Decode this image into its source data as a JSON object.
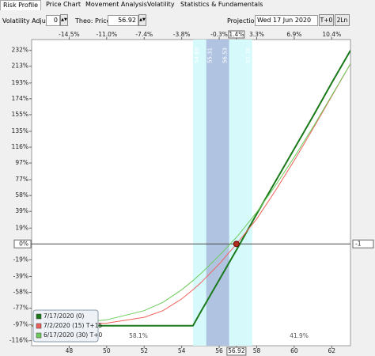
{
  "tabs": [
    "Risk Profile",
    "Price Chart",
    "Movement Analysis",
    "Volatility",
    "Statistics & Fundamentals"
  ],
  "toolbar": {
    "volatility_label": "Volatility Adjust",
    "volatility_value": "0",
    "theo_label": "Theo: Price",
    "theo_value": "56.92",
    "projection_label": "Projection",
    "projection_value": "Wed 17 Jun 2020",
    "buttons": [
      "T+0",
      "2Ln"
    ]
  },
  "chart_data": {
    "type": "line",
    "x": [
      46,
      48,
      50,
      52,
      53,
      54,
      54.6,
      55,
      56,
      57,
      58,
      59,
      60,
      61,
      62,
      63
    ],
    "series": [
      {
        "name": "7/17/2020 (0)",
        "color": "#1a7a1a",
        "values": [
          -98,
          -98,
          -98,
          -98,
          -98,
          -98,
          -98,
          -82,
          -43,
          -4,
          36,
          75,
          114,
          153,
          193,
          232
        ]
      },
      {
        "name": "7/2/2020 (15) T+15",
        "color": "#f0605a",
        "values": [
          -98,
          -97,
          -95,
          -88,
          -80,
          -66,
          -55,
          -47,
          -24,
          2,
          30,
          64,
          100,
          138,
          177,
          216
        ]
      },
      {
        "name": "6/17/2020 (30) T+0",
        "color": "#6ccc5a",
        "values": [
          -97,
          -95,
          -91,
          -80,
          -70,
          -55,
          -44,
          -36,
          -14,
          10,
          38,
          70,
          104,
          140,
          178,
          216
        ]
      }
    ],
    "xlim": [
      46,
      63
    ],
    "ylim": [
      -122,
      245
    ],
    "xticks": [
      48,
      50,
      52,
      54,
      56,
      56.92,
      58,
      60,
      62
    ],
    "x2_labels": [
      "-14.5%",
      "-11.0%",
      "-7.4%",
      "-3.8%",
      "-0.3%",
      "1.4%",
      "3.3%",
      "6.9%",
      "10.4%"
    ],
    "yticks": [
      {
        "value": 232,
        "label": "232%"
      },
      {
        "value": 213,
        "label": "213%"
      },
      {
        "value": 193,
        "label": "193%"
      },
      {
        "value": 174,
        "label": "174%"
      },
      {
        "value": 155,
        "label": "155%"
      },
      {
        "value": 135,
        "label": "135%"
      },
      {
        "value": 116,
        "label": "116%"
      },
      {
        "value": 97,
        "label": "97%"
      },
      {
        "value": 77,
        "label": "77%"
      },
      {
        "value": 58,
        "label": "58%"
      },
      {
        "value": 39,
        "label": "39%"
      },
      {
        "value": 19,
        "label": "19%"
      },
      {
        "value": 0,
        "label": "0%"
      },
      {
        "value": -19,
        "label": "-19%"
      },
      {
        "value": -39,
        "label": "-39%"
      },
      {
        "value": -58,
        "label": "-58%"
      },
      {
        "value": -77,
        "label": "-77%"
      },
      {
        "value": -97,
        "label": "-97%"
      },
      {
        "value": -116,
        "label": "-116%"
      }
    ],
    "bands": [
      {
        "from": 54.6,
        "to": 57.76,
        "labels": [
          "54.60",
          "57.76"
        ],
        "color": "#d6fafc"
      },
      {
        "from": 55.31,
        "to": 56.53,
        "labels": [
          "55.31",
          "56.53"
        ],
        "color": "#b0c4e2"
      }
    ],
    "annotations": [
      "58.1%",
      "41.9%"
    ],
    "current_value_label": "-1",
    "current_price": 56.92
  }
}
